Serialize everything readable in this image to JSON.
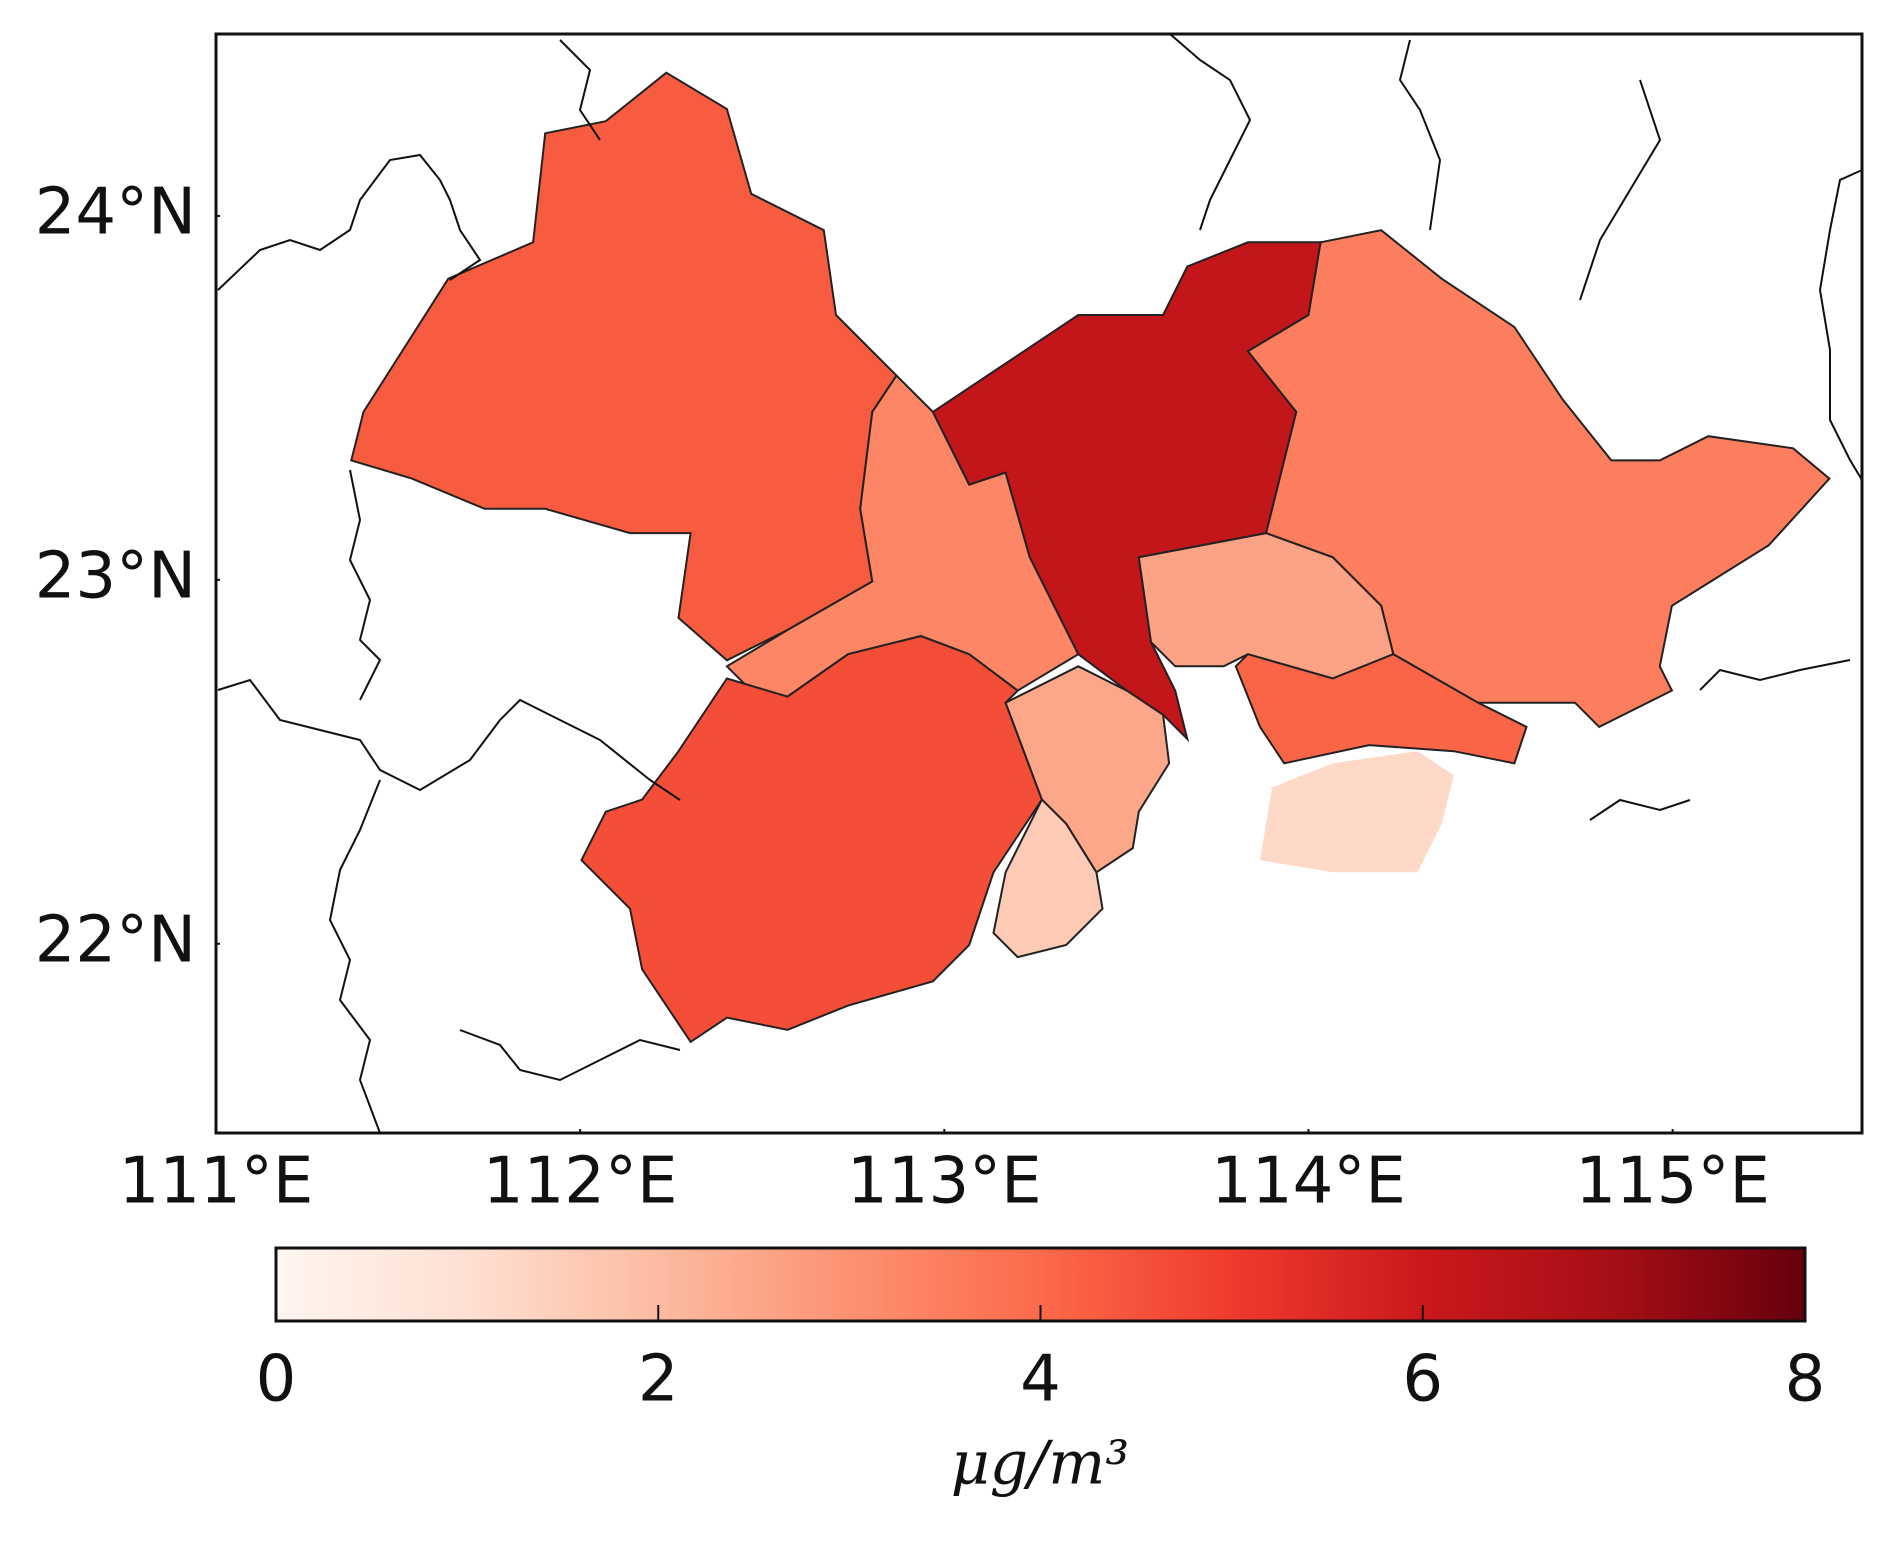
{
  "chart_data": {
    "type": "choropleth",
    "xlim": [
      111,
      115.52
    ],
    "ylim": [
      21.48,
      24.5
    ],
    "xticks": [
      {
        "value": 111,
        "label": "111°E"
      },
      {
        "value": 112,
        "label": "112°E"
      },
      {
        "value": 113,
        "label": "113°E"
      },
      {
        "value": 114,
        "label": "114°E"
      },
      {
        "value": 115,
        "label": "115°E"
      }
    ],
    "yticks": [
      {
        "value": 22,
        "label": "22°N"
      },
      {
        "value": 23,
        "label": "23°N"
      },
      {
        "value": 24,
        "label": "24°N"
      }
    ],
    "values": [
      4.3,
      3.3,
      6.2,
      3.5,
      2.6,
      4.1,
      4.6,
      2.5,
      1.6,
      1.2
    ],
    "colorbar_lim": [
      0,
      8
    ],
    "colorbar_ticks": [
      0,
      2,
      4,
      6,
      8
    ],
    "colorbar_label": "μg/m³",
    "colors": [
      "#fff5f0",
      "#fee0d2",
      "#fcbba1",
      "#fc9272",
      "#fb6a4a",
      "#ef3b2c",
      "#cb181d",
      "#a50f15",
      "#67000d"
    ]
  }
}
